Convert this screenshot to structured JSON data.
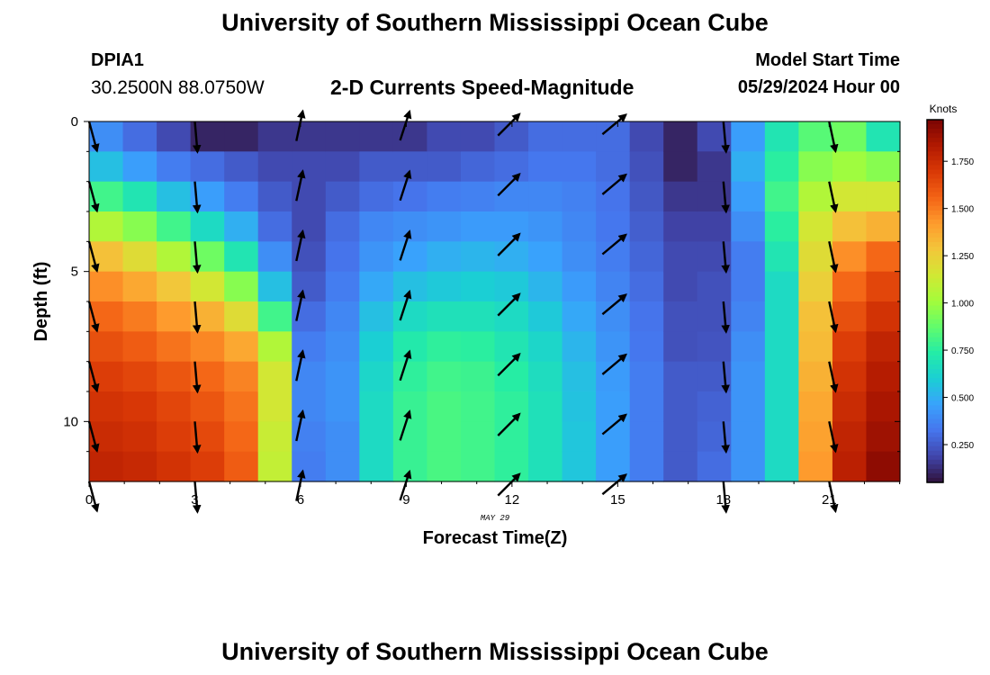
{
  "header": {
    "title": "University of Southern Mississippi Ocean Cube",
    "station_id": "DPIA1",
    "station_coords": "30.2500N  88.0750W",
    "plot_title": "2-D Currents Speed-Magnitude",
    "model_start_label": "Model Start Time",
    "model_start_value": "05/29/2024 Hour 00"
  },
  "footer": {
    "title": "University of Southern Mississippi Ocean Cube"
  },
  "chart_data": {
    "type": "heatmap",
    "title": "2-D Currents Speed-Magnitude",
    "xlabel": "Forecast Time(Z)",
    "ylabel": "Depth (ft)",
    "date_label": "MAY 29",
    "xlim": [
      0,
      23
    ],
    "ylim": [
      0,
      12
    ],
    "x_ticks": [
      0,
      3,
      6,
      9,
      12,
      15,
      18,
      21
    ],
    "y_ticks": [
      0,
      5,
      10
    ],
    "hours": [
      0,
      1,
      2,
      3,
      4,
      5,
      6,
      7,
      8,
      9,
      10,
      11,
      12,
      13,
      14,
      15,
      16,
      17,
      18,
      19,
      20,
      21,
      22,
      23
    ],
    "depths": [
      0,
      1,
      2,
      3,
      4,
      5,
      6,
      7,
      8,
      9,
      10,
      11
    ],
    "speed_knots_by_hour": [
      [
        0.4,
        0.55,
        0.8,
        1.05,
        1.3,
        1.45,
        1.55,
        1.62,
        1.68,
        1.72,
        1.75,
        1.78
      ],
      [
        0.3,
        0.45,
        0.7,
        0.95,
        1.2,
        1.38,
        1.5,
        1.58,
        1.65,
        1.7,
        1.73,
        1.76
      ],
      [
        0.2,
        0.35,
        0.55,
        0.8,
        1.05,
        1.28,
        1.42,
        1.52,
        1.6,
        1.65,
        1.68,
        1.72
      ],
      [
        0.1,
        0.3,
        0.45,
        0.65,
        0.9,
        1.15,
        1.35,
        1.47,
        1.55,
        1.6,
        1.64,
        1.68
      ],
      [
        0.1,
        0.25,
        0.35,
        0.5,
        0.7,
        0.95,
        1.2,
        1.38,
        1.48,
        1.52,
        1.55,
        1.58
      ],
      [
        0.15,
        0.2,
        0.25,
        0.3,
        0.4,
        0.55,
        0.8,
        1.05,
        1.15,
        1.15,
        1.12,
        1.1
      ],
      [
        0.15,
        0.2,
        0.2,
        0.2,
        0.22,
        0.25,
        0.3,
        0.35,
        0.38,
        0.38,
        0.36,
        0.35
      ],
      [
        0.15,
        0.2,
        0.25,
        0.3,
        0.32,
        0.35,
        0.38,
        0.4,
        0.42,
        0.42,
        0.4,
        0.4
      ],
      [
        0.15,
        0.25,
        0.3,
        0.38,
        0.42,
        0.48,
        0.55,
        0.6,
        0.63,
        0.65,
        0.65,
        0.65
      ],
      [
        0.15,
        0.25,
        0.32,
        0.4,
        0.46,
        0.55,
        0.65,
        0.72,
        0.76,
        0.78,
        0.78,
        0.78
      ],
      [
        0.2,
        0.25,
        0.35,
        0.42,
        0.5,
        0.58,
        0.68,
        0.76,
        0.8,
        0.82,
        0.82,
        0.82
      ],
      [
        0.2,
        0.28,
        0.36,
        0.44,
        0.52,
        0.6,
        0.68,
        0.75,
        0.79,
        0.8,
        0.8,
        0.8
      ],
      [
        0.25,
        0.3,
        0.38,
        0.44,
        0.5,
        0.58,
        0.65,
        0.7,
        0.74,
        0.76,
        0.76,
        0.76
      ],
      [
        0.3,
        0.33,
        0.38,
        0.42,
        0.46,
        0.52,
        0.58,
        0.63,
        0.66,
        0.68,
        0.68,
        0.68
      ],
      [
        0.3,
        0.33,
        0.36,
        0.38,
        0.4,
        0.44,
        0.48,
        0.52,
        0.55,
        0.56,
        0.57,
        0.57
      ],
      [
        0.3,
        0.3,
        0.32,
        0.33,
        0.35,
        0.37,
        0.4,
        0.42,
        0.44,
        0.45,
        0.45,
        0.45
      ],
      [
        0.2,
        0.22,
        0.24,
        0.26,
        0.28,
        0.3,
        0.32,
        0.33,
        0.35,
        0.35,
        0.35,
        0.35
      ],
      [
        0.1,
        0.1,
        0.15,
        0.18,
        0.2,
        0.2,
        0.22,
        0.22,
        0.25,
        0.25,
        0.25,
        0.25
      ],
      [
        0.2,
        0.15,
        0.15,
        0.18,
        0.2,
        0.22,
        0.22,
        0.23,
        0.25,
        0.27,
        0.28,
        0.3
      ],
      [
        0.45,
        0.5,
        0.45,
        0.4,
        0.35,
        0.35,
        0.37,
        0.4,
        0.42,
        0.42,
        0.42,
        0.42
      ],
      [
        0.7,
        0.75,
        0.8,
        0.75,
        0.7,
        0.65,
        0.65,
        0.65,
        0.65,
        0.65,
        0.65,
        0.65
      ],
      [
        0.85,
        0.95,
        1.05,
        1.15,
        1.2,
        1.25,
        1.3,
        1.32,
        1.35,
        1.38,
        1.4,
        1.42
      ],
      [
        0.9,
        1.0,
        1.15,
        1.3,
        1.45,
        1.55,
        1.62,
        1.68,
        1.72,
        1.75,
        1.78,
        1.8
      ],
      [
        0.7,
        0.95,
        1.15,
        1.35,
        1.55,
        1.65,
        1.72,
        1.78,
        1.82,
        1.85,
        1.88,
        1.92
      ]
    ],
    "vector_hours": [
      0,
      3,
      6,
      9,
      12,
      15,
      18,
      21
    ],
    "vector_depths": [
      0,
      2,
      4,
      6,
      8,
      10,
      12
    ],
    "vector_direction_deg": [
      165,
      175,
      12,
      18,
      45,
      50,
      175,
      168
    ],
    "colorbar": {
      "label": "Knots",
      "min": 0.05,
      "max": 1.97,
      "ticks": [
        "0.250",
        "0.500",
        "0.750",
        "1.000",
        "1.250",
        "1.500",
        "1.750"
      ],
      "tick_values": [
        0.25,
        0.5,
        0.75,
        1.0,
        1.25,
        1.5,
        1.75
      ],
      "colors": [
        "#30123b",
        "#4145ab",
        "#4675ed",
        "#39a2fc",
        "#1bcfd4",
        "#24eca6",
        "#61fc6c",
        "#a4fc3b",
        "#d1e834",
        "#f3c63a",
        "#fe9b2d",
        "#f36315",
        "#d93806",
        "#b11901",
        "#7a0403"
      ]
    }
  }
}
